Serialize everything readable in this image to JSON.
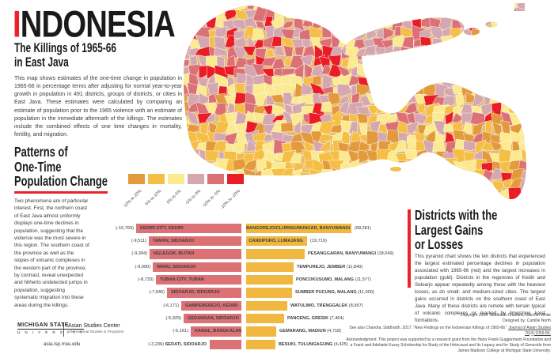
{
  "header": {
    "title_accent": "I",
    "title_rest": "NDONESIA",
    "subtitle_line1": "The Killings of 1965-66",
    "subtitle_line2": "in East Java",
    "intro": "This map shows estimates of the one-time change in population in 1965-66 in percentage terms after adjusting for normal year-to-year growth in population in 491 districts, groups of districts, or cities in East Java. These estimates were calculated by comparing an estimate of population prior to the 1965 violence with an estimate of population in the immediate aftermath of the killings. The estimates include the combined effects of one time changes in mortality, fertility, and migration."
  },
  "patterns": {
    "heading_lines": [
      "Patterns of",
      "One-Time",
      "Population Change"
    ],
    "body": "Two phenomena are of particular interest. First, the northern coast of East Java almost uniformly displays one-time declines in population, suggesting that the violence was the most severe in this region. The southern coast of the province as well as the slopes of volcanic complexes in the western part of the province, by contrast, reveal unexpected and hitherto undetected jumps in population, suggesting systematic migration into these areas during the killings."
  },
  "legend": {
    "items": [
      {
        "label": "10% to 20%",
        "color": "#E29A3C"
      },
      {
        "label": "5% to 10%",
        "color": "#F5BE44"
      },
      {
        "label": "0% to 5%",
        "color": "#FBEA8F"
      },
      {
        "label": "-5% to 0%",
        "color": "#D5A7B0"
      },
      {
        "label": "-10% to -5%",
        "color": "#DB7076"
      },
      {
        "label": "-10% to -20%",
        "color": "#EA1C25"
      }
    ]
  },
  "districts_panel": {
    "heading_lines": [
      "Districts with the",
      "Largest Gains",
      "or Losses"
    ],
    "body": "This pyramid chart shows the ten districts that experienced the largest estimated percentage declines in population associated with 1965-66 (red) and the largest increases in population (gold). Districts in the regencies of Kediri and Sidoarjo appear repeatedly among those with the heaviest losses, as do small- and medium-sized cities. The largest gains occurred in districts on the southern coast of East Java. Many of these districts are remote with terrain typical of volcanic complexes or marked by limestone karst formations."
  },
  "chart_data": {
    "type": "bar",
    "orientation": "pyramid",
    "title": "Districts with the Largest Gains or Losses",
    "loss_color": "#DC7176",
    "gain_color": "#F0B840",
    "rows": [
      {
        "loss": {
          "name": "KEDIRI CITY, KEDIRI",
          "value": -10769,
          "label": "(-10,769)",
          "inside": true
        },
        "gain": {
          "name": "BANGOREJO/CLURING/MUNCAR, BANYUWANGI",
          "value": 58281,
          "label": "(58,281)",
          "inside": true
        }
      },
      {
        "loss": {
          "name": "TAMAN, SIDOARJO",
          "value": -9511,
          "label": "(-9,511)",
          "inside": true
        },
        "gain": {
          "name": "CANDIPURO, LUMAJANG",
          "value": 19710,
          "label": "(19,710)",
          "inside": true
        }
      },
      {
        "loss": {
          "name": "NGLEGOK, BLITAR",
          "value": -9394,
          "label": "(-9,394)",
          "inside": true
        },
        "gain": {
          "name": "PESANGGARAN, BANYUWANGI",
          "value": 18049,
          "label": "(18,049)",
          "inside": false
        }
      },
      {
        "loss": {
          "name": "WARU, SIDOARJO",
          "value": -9090,
          "label": "(-9,090)",
          "inside": true
        },
        "gain": {
          "name": "TEMPUREJO, JEMBER",
          "value": 11840,
          "label": "(11,840)",
          "inside": false
        }
      },
      {
        "loss": {
          "name": "TUBAN CITY, TUBAN",
          "value": -8733,
          "label": "(-8,733)",
          "inside": true
        },
        "gain": {
          "name": "PONCOKUSUMO, MALANG",
          "value": 11577,
          "label": "(11,577)",
          "inside": false
        }
      },
      {
        "loss": {
          "name": "SIDOARJO, SIDOARJO",
          "value": -7646,
          "label": "(-7,646)",
          "inside": true
        },
        "gain": {
          "name": "SUMBER PUCUNG, MALANG",
          "value": 11000,
          "label": "(11,000)",
          "inside": false
        }
      },
      {
        "loss": {
          "name": "GAMPENGREJO, KEDIRI",
          "value": -6171,
          "label": "(-6,171)",
          "inside": true
        },
        "gain": {
          "name": "WATULIMO, TRENGGALEK",
          "value": 8957,
          "label": "(8,957)",
          "inside": false
        }
      },
      {
        "loss": {
          "name": "GEDANGAN, SIDOARJO",
          "value": -5929,
          "label": "(-5,929)",
          "inside": true
        },
        "gain": {
          "name": "PANCENG, GRESIK",
          "value": 7464,
          "label": "(7,464)",
          "inside": false
        }
      },
      {
        "loss": {
          "name": "KAMAL, BANGKALAN",
          "value": -5161,
          "label": "(-5,161)",
          "inside": true
        },
        "gain": {
          "name": "GEMARANG, MADIUN",
          "value": 4718,
          "label": "(4,718)",
          "inside": false
        }
      },
      {
        "loss": {
          "name": "SEDATI, SIDOARJO",
          "value": -3236,
          "label": "(-3,236)",
          "inside": false
        },
        "gain": {
          "name": "BESUKI, TULUNGAGUNG",
          "value": 4425,
          "label": "(4,425)",
          "inside": false
        }
      }
    ]
  },
  "map": {
    "sea": "#FFFFFF",
    "border_color": "#FFFFFF",
    "palette": [
      "#E29A3C",
      "#F5BE44",
      "#FBEA8F",
      "#D5A7B0",
      "#DB7076",
      "#EA1C25"
    ]
  },
  "footer": {
    "msu_name": "MICHIGAN STATE",
    "msu_university": "U N I V E R S I T Y",
    "center_name": "Asian Studies Center",
    "center_sub": "International Studies & Programs",
    "url": "asia.isp.msu.edu"
  },
  "credits": {
    "copyright": "Copyright 2019: Siddharth Chandra, Raechel White",
    "designed_by": "Designed by: Camille North",
    "see_also_prefix": "See also Chandra, Siddharth. 2017. “New Findings on the Indonesian Killings of 1965-66.” ",
    "see_also_journal": "Journal of Asian Studies 76(4):1059-86.",
    "acknowledgment": "Acknowledgment: This project was supported by a research grant from the Harry Frank Guggenheim Foundation and a Frank and Adelaide Kussy Scholarship for Study of the Holocaust and Its Legacy and for Study of Genocide from James Madison College at Michigan State University."
  }
}
